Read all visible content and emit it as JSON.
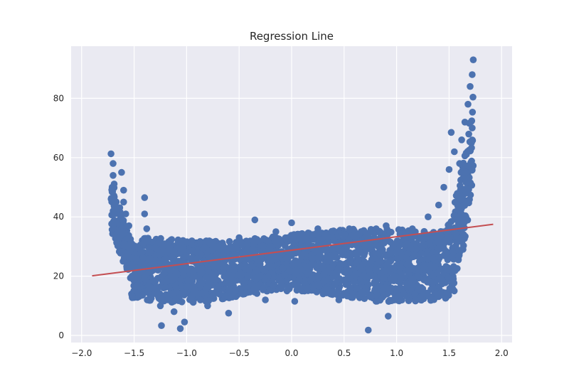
{
  "chart_data": {
    "type": "scatter",
    "title": "Regression Line",
    "xlabel": "",
    "ylabel": "",
    "xlim": [
      -2.1,
      2.1
    ],
    "ylim": [
      -2.4,
      97.6
    ],
    "x_ticks": [
      -2.0,
      -1.5,
      -1.0,
      -0.5,
      0.0,
      0.5,
      1.0,
      1.5,
      2.0
    ],
    "x_tick_labels": [
      "−2.0",
      "−1.5",
      "−1.0",
      "−0.5",
      "0.0",
      "0.5",
      "1.0",
      "1.5",
      "2.0"
    ],
    "y_ticks": [
      0,
      20,
      40,
      60,
      80
    ],
    "y_tick_labels": [
      "0",
      "20",
      "40",
      "60",
      "80"
    ],
    "grid": true,
    "background": "#EAEAF2",
    "point_color": "#4C72B0",
    "line_color": "#C44E52",
    "series": [
      {
        "type": "scatter",
        "points": [
          [
            -1.72,
            61.3
          ],
          [
            -1.7,
            58.0
          ],
          [
            -1.7,
            54.0
          ],
          [
            -1.71,
            50.0
          ],
          [
            -1.7,
            46.0
          ],
          [
            -1.7,
            42.0
          ],
          [
            -1.69,
            38.0
          ],
          [
            -1.67,
            34.0
          ],
          [
            -1.66,
            31.0
          ],
          [
            -1.64,
            33.0
          ],
          [
            -1.62,
            55.0
          ],
          [
            -1.6,
            49.0
          ],
          [
            -1.6,
            45.0
          ],
          [
            -1.58,
            41.0
          ],
          [
            -1.55,
            37.0
          ],
          [
            -1.55,
            28.0
          ],
          [
            -1.52,
            24.0
          ],
          [
            -1.5,
            30.0
          ],
          [
            -1.48,
            26.0
          ],
          [
            -1.47,
            16.8
          ],
          [
            -1.45,
            22.0
          ],
          [
            -1.4,
            46.5
          ],
          [
            -1.4,
            41.0
          ],
          [
            -1.38,
            36.0
          ],
          [
            -1.35,
            28.0
          ],
          [
            -1.32,
            22.0
          ],
          [
            -1.3,
            18.0
          ],
          [
            -1.28,
            14.0
          ],
          [
            -1.25,
            10.0
          ],
          [
            -1.24,
            3.3
          ],
          [
            -1.2,
            26.0
          ],
          [
            -1.18,
            12.0
          ],
          [
            -1.15,
            20.0
          ],
          [
            -1.12,
            8.0
          ],
          [
            -1.1,
            16.0
          ],
          [
            -1.06,
            2.3
          ],
          [
            -1.02,
            4.5
          ],
          [
            -1.0,
            31.5
          ],
          [
            -0.98,
            22.0
          ],
          [
            -0.95,
            12.0
          ],
          [
            -0.9,
            28.0
          ],
          [
            -0.85,
            18.0
          ],
          [
            -0.8,
            10.0
          ],
          [
            -0.75,
            24.0
          ],
          [
            -0.7,
            16.0
          ],
          [
            -0.65,
            30.0
          ],
          [
            -0.6,
            7.5
          ],
          [
            -0.55,
            22.0
          ],
          [
            -0.5,
            33.0
          ],
          [
            -0.45,
            14.0
          ],
          [
            -0.4,
            26.0
          ],
          [
            -0.35,
            39.0
          ],
          [
            -0.3,
            20.0
          ],
          [
            -0.25,
            12.0
          ],
          [
            -0.2,
            30.0
          ],
          [
            -0.15,
            35.0
          ],
          [
            -0.1,
            18.0
          ],
          [
            -0.05,
            26.0
          ],
          [
            0.0,
            38.0
          ],
          [
            0.03,
            11.5
          ],
          [
            0.05,
            22.0
          ],
          [
            0.1,
            30.0
          ],
          [
            0.15,
            16.0
          ],
          [
            0.2,
            26.0
          ],
          [
            0.25,
            36.0
          ],
          [
            0.3,
            14.0
          ],
          [
            0.35,
            22.0
          ],
          [
            0.4,
            32.0
          ],
          [
            0.45,
            12.0
          ],
          [
            0.5,
            24.0
          ],
          [
            0.55,
            36.0
          ],
          [
            0.6,
            18.0
          ],
          [
            0.65,
            28.0
          ],
          [
            0.7,
            20.0
          ],
          [
            0.73,
            1.8
          ],
          [
            0.75,
            30.0
          ],
          [
            0.8,
            15.0
          ],
          [
            0.85,
            25.0
          ],
          [
            0.9,
            37.0
          ],
          [
            0.92,
            6.5
          ],
          [
            0.95,
            16.0
          ],
          [
            1.0,
            28.0
          ],
          [
            1.05,
            12.0
          ],
          [
            1.1,
            24.0
          ],
          [
            1.15,
            36.0
          ],
          [
            1.2,
            20.0
          ],
          [
            1.25,
            30.0
          ],
          [
            1.3,
            40.0
          ],
          [
            1.35,
            26.0
          ],
          [
            1.4,
            44.0
          ],
          [
            1.45,
            50.0
          ],
          [
            1.48,
            35.0
          ],
          [
            1.5,
            56.0
          ],
          [
            1.52,
            68.5
          ],
          [
            1.55,
            62.0
          ],
          [
            1.58,
            44.0
          ],
          [
            1.6,
            58.0
          ],
          [
            1.62,
            66.0
          ],
          [
            1.65,
            72.0
          ],
          [
            1.66,
            55.0
          ],
          [
            1.68,
            78.0
          ],
          [
            1.7,
            84.0
          ],
          [
            1.72,
            70.0
          ],
          [
            1.72,
            88.0
          ],
          [
            1.73,
            93.0
          ]
        ]
      },
      {
        "type": "line",
        "x": [
          -1.9,
          1.92
        ],
        "y": [
          20.1,
          37.5
        ]
      }
    ]
  }
}
